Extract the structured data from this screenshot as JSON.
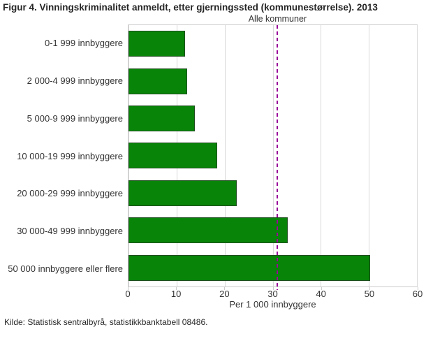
{
  "figure": {
    "title": "Figur 4. Vinningskriminalitet anmeldt, etter gjerningssted (kommunestørrelse). 2013",
    "source": "Kilde: Statistisk sentralbyrå, statistikkbanktabell 08486."
  },
  "chart_data": {
    "type": "bar",
    "orientation": "horizontal",
    "title": "Figur 4. Vinningskriminalitet anmeldt, etter gjerningssted (kommunestørrelse). 2013",
    "categories": [
      "0-1 999 innbyggere",
      "2 000-4 999 innbyggere",
      "5 000-9 999 innbyggere",
      "10 000-19 999 innbyggere",
      "20 000-29 999 innbyggere",
      "30 000-49 999 innbyggere",
      "50 000 innbyggere eller flere"
    ],
    "values": [
      11.8,
      12.2,
      13.8,
      18.5,
      22.5,
      33.1,
      50.2
    ],
    "xlabel": "Per 1 000 innbyggere",
    "ylabel": "",
    "xlim": [
      0,
      60
    ],
    "xticks": [
      0,
      10,
      20,
      30,
      40,
      50,
      60
    ],
    "grid": true,
    "legend": "none",
    "reference_line": {
      "label": "Alle kommuner",
      "value": 31,
      "style": "dashed",
      "color": "#990099"
    },
    "bar_color": "#088408",
    "bar_border_color": "#1f4d1f",
    "grid_color": "#d9d9d9"
  }
}
